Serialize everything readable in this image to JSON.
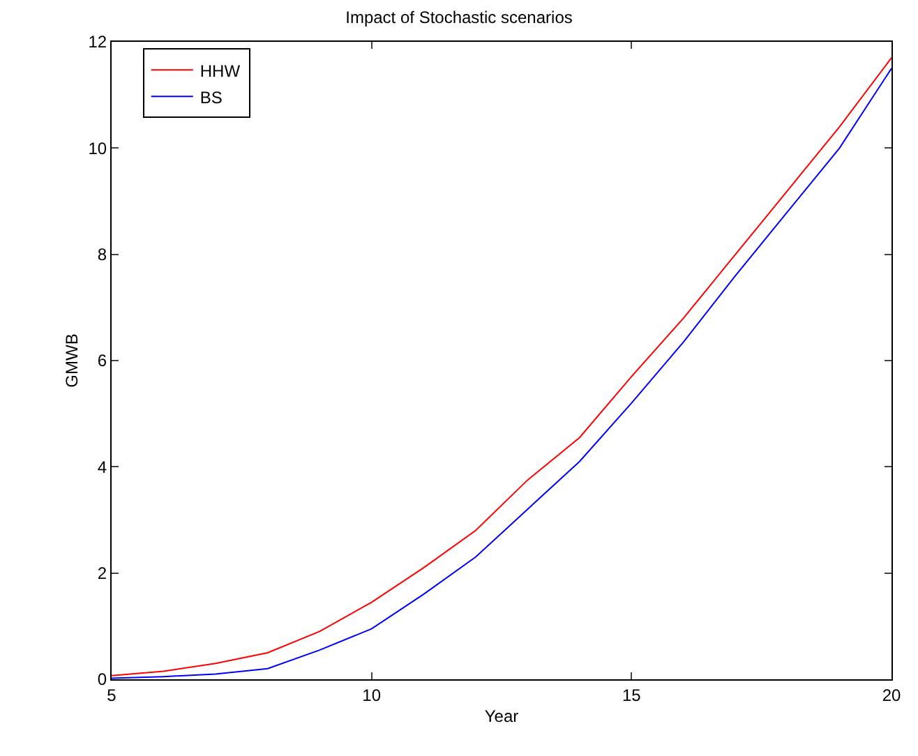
{
  "chart_data": {
    "type": "line",
    "title": "Impact of Stochastic scenarios",
    "xlabel": "Year",
    "ylabel": "GMWB",
    "x": [
      5,
      6,
      7,
      8,
      9,
      10,
      11,
      12,
      13,
      14,
      15,
      16,
      17,
      18,
      19,
      20
    ],
    "series": [
      {
        "name": "HHW",
        "color": "#ff0000",
        "values": [
          0.07,
          0.15,
          0.3,
          0.5,
          0.9,
          1.45,
          2.1,
          2.8,
          3.75,
          4.55,
          5.7,
          6.8,
          8.0,
          9.2,
          10.4,
          11.7
        ]
      },
      {
        "name": "BS",
        "color": "#0000ff",
        "values": [
          0.02,
          0.05,
          0.1,
          0.2,
          0.55,
          0.95,
          1.6,
          2.3,
          3.2,
          4.1,
          5.2,
          6.35,
          7.6,
          8.8,
          10.0,
          11.5
        ]
      }
    ],
    "xlim": [
      5,
      20
    ],
    "xticks": [
      5,
      10,
      15,
      20
    ],
    "ylim": [
      0,
      12
    ],
    "yticks": [
      0,
      2,
      4,
      6,
      8,
      10,
      12
    ],
    "legend": "top left",
    "marker": "none",
    "line_style": "solid"
  }
}
